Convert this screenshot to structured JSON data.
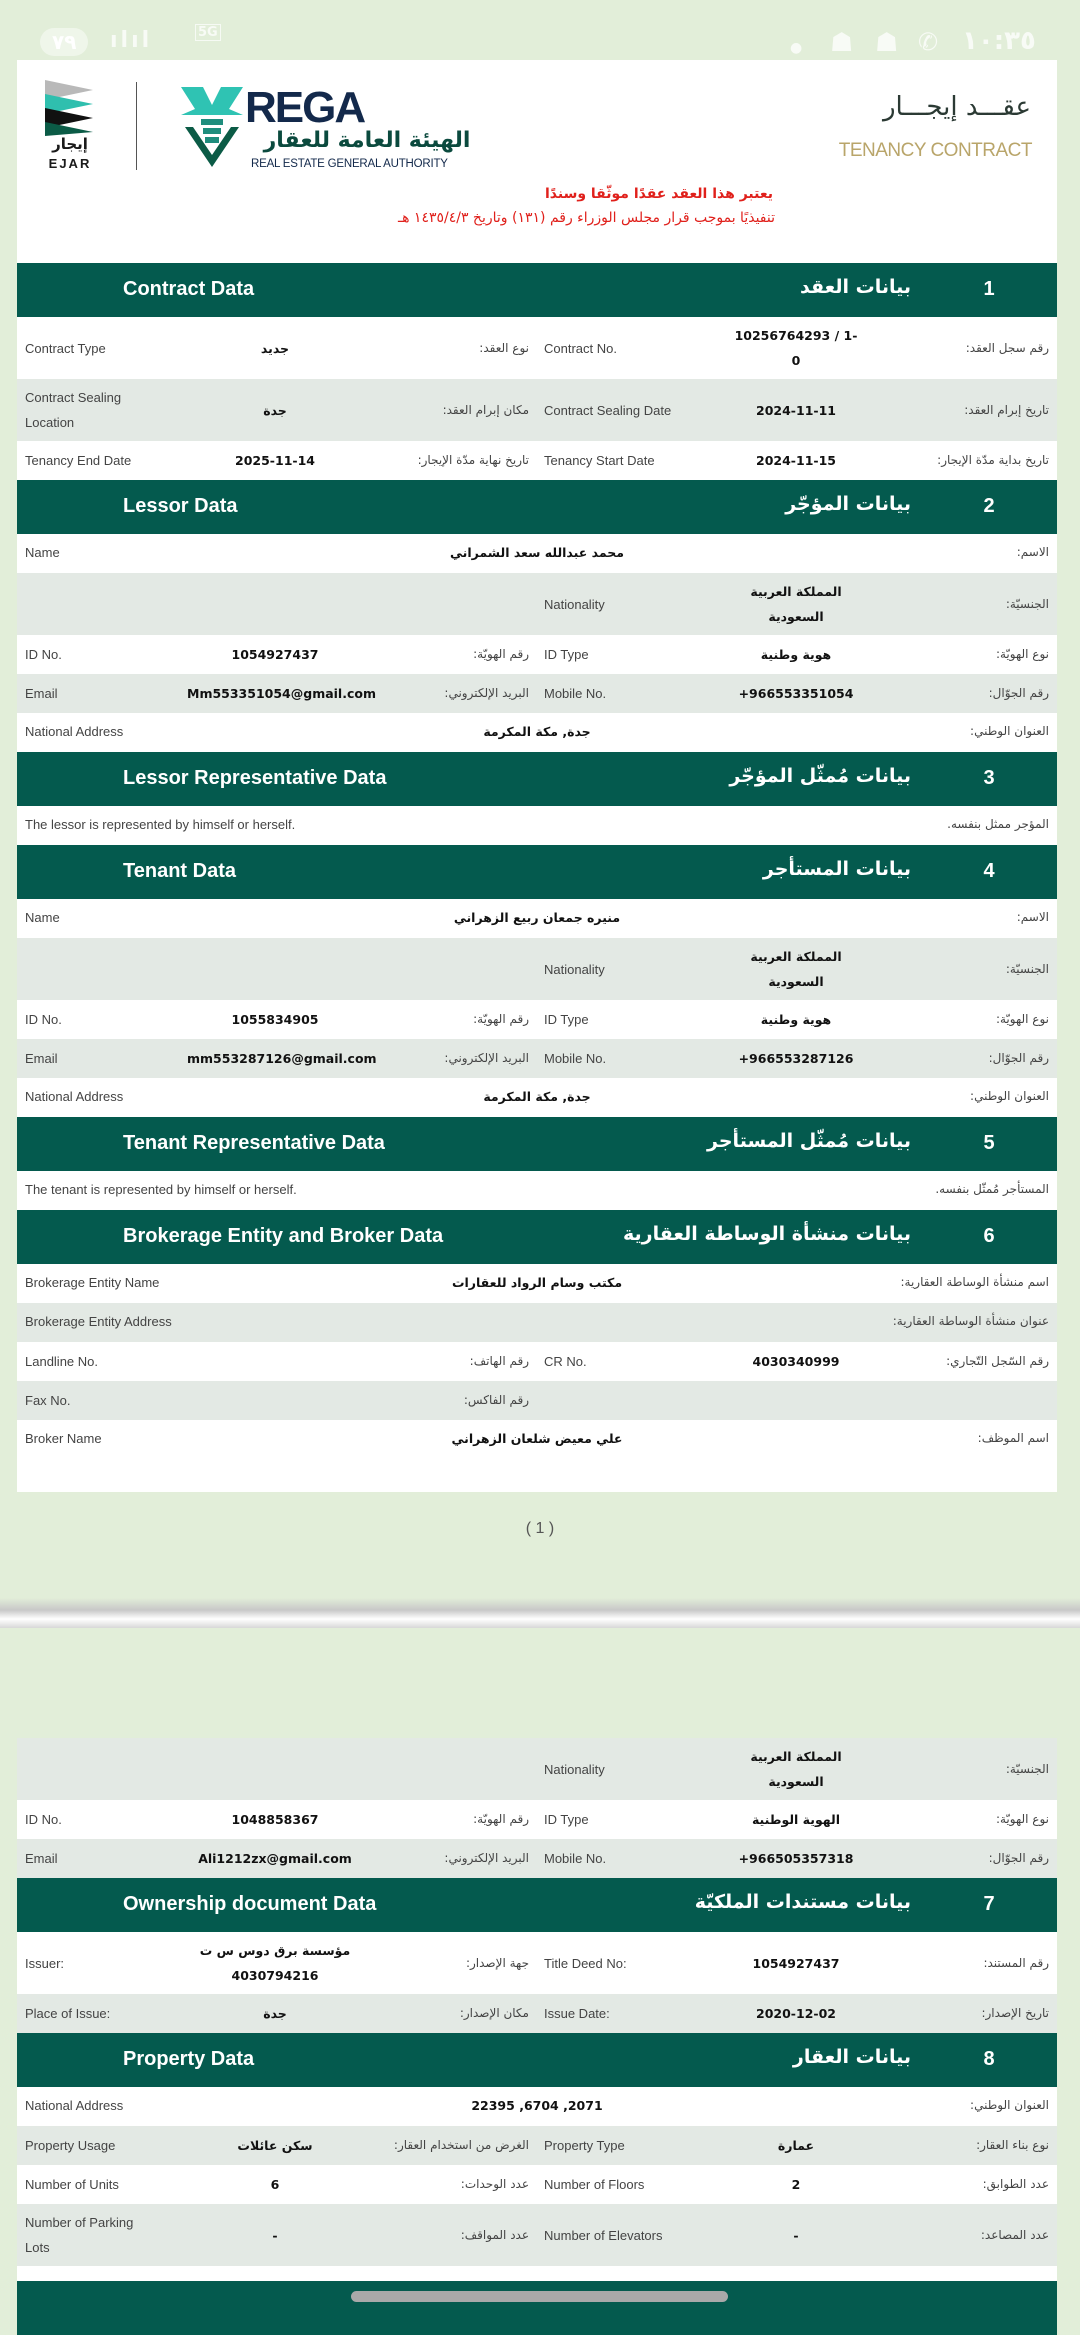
{
  "status_bar": {
    "time": "١٠:٣٥",
    "battery": "٧٩",
    "network": "5G"
  },
  "header": {
    "ejar_logo_ar": "إيجار",
    "ejar_logo_en": "EJAR",
    "rega_logo": "REGA",
    "rega_ar": "الهيئة العامة للعقار",
    "rega_en": "REAL ESTATE GENERAL AUTHORITY",
    "title_ar": "عقـــد إيجـــار",
    "title_en": "TENANCY CONTRACT",
    "notice_line1": "يعتبر هذا العقد عقدًا موثّقا وسندًا",
    "notice_line2": "تنفيذيًا بموجب قرار مجلس الوزراء رقم (١٣١) وتاريخ ١٤٣٥/٤/٣ هـ",
    "colors": {
      "section_header": "#045a4e",
      "notice": "#e0201b",
      "title_en": "#b9a56a"
    }
  },
  "page1": {
    "sections": [
      {
        "num": "1",
        "en": "Contract Data",
        "ar": "بيانات العقد",
        "rows": [
          {
            "type": "quad",
            "cells": [
              "Contract Type",
              "جديد",
              "نوع العقد:",
              "Contract No.",
              "10256764293 / 1-0",
              "رقم سجل العقد:"
            ]
          },
          {
            "type": "quad",
            "cells": [
              "Contract Sealing Location",
              "جدة",
              "مكان إبرام العقد:",
              "Contract Sealing Date",
              "2024-11-11",
              "تاريخ إبرام العقد:"
            ]
          },
          {
            "type": "quad",
            "cells": [
              "Tenancy End Date",
              "2025-11-14",
              "تاريخ نهاية مدّة الإيجار:",
              "Tenancy Start Date",
              "2024-11-15",
              "تاريخ بداية مدّة الإيجار:"
            ]
          }
        ]
      },
      {
        "num": "2",
        "en": "Lessor Data",
        "ar": "بيانات المؤجّر",
        "rows": [
          {
            "type": "full",
            "cells": [
              "Name",
              "محمد عبدالله سعد الشمراني",
              "الاسم:"
            ]
          },
          {
            "type": "quad",
            "cells": [
              "",
              "",
              "",
              "Nationality",
              "المملكة العربية السعودية",
              "الجنسيّة:"
            ]
          },
          {
            "type": "quad",
            "cells": [
              "ID No.",
              "1054927437",
              "رقم الهويّة:",
              "ID Type",
              "هوية وطنية",
              "نوع الهويّة:"
            ]
          },
          {
            "type": "quad",
            "cells": [
              "Email",
              "Mm553351054@gmail.com",
              "البريد الإلكتروني:",
              "Mobile No.",
              "+966553351054",
              "رقم الجوّال:"
            ]
          },
          {
            "type": "full",
            "cells": [
              "National Address",
              "جدة, مكة المكرمة",
              "العنوان الوطني:"
            ]
          }
        ]
      },
      {
        "num": "3",
        "en": "Lessor Representative Data",
        "ar": "بيانات مُمثّل المؤجّر",
        "rows": [
          {
            "type": "note",
            "cells": [
              "The lessor is represented by himself or herself.",
              "المؤجر ممثل بنفسه."
            ]
          }
        ]
      },
      {
        "num": "4",
        "en": "Tenant Data",
        "ar": "بيانات المستأجر",
        "rows": [
          {
            "type": "full",
            "cells": [
              "Name",
              "منيره جمعان ربيع الزهراني",
              "الاسم:"
            ]
          },
          {
            "type": "quad",
            "cells": [
              "",
              "",
              "",
              "Nationality",
              "المملكة العربية السعودية",
              "الجنسيّة:"
            ]
          },
          {
            "type": "quad",
            "cells": [
              "ID No.",
              "1055834905",
              "رقم الهويّة:",
              "ID Type",
              "هوية وطنية",
              "نوع الهويّة:"
            ]
          },
          {
            "type": "quad",
            "cells": [
              "Email",
              "mm553287126@gmail.com",
              "البريد الإلكتروني:",
              "Mobile No.",
              "+966553287126",
              "رقم الجوّال:"
            ]
          },
          {
            "type": "full",
            "cells": [
              "National Address",
              "جدة, مكة المكرمة",
              "العنوان الوطني:"
            ]
          }
        ]
      },
      {
        "num": "5",
        "en": "Tenant Representative Data",
        "ar": "بيانات مُمثّل المستأجر",
        "rows": [
          {
            "type": "note",
            "cells": [
              "The tenant is represented by himself or herself.",
              "المستأجر مُمثّل بنفسه."
            ]
          }
        ]
      },
      {
        "num": "6",
        "en": "Brokerage Entity and Broker Data",
        "ar": "بيانات منشأة الوساطة العقارية",
        "rows": [
          {
            "type": "full",
            "cells": [
              "Brokerage Entity Name",
              "مكتب وسام الرواد للعقارات",
              "اسم منشأة الوساطة العقارية:"
            ]
          },
          {
            "type": "full",
            "cells": [
              "Brokerage Entity Address",
              "",
              "عنوان منشأة الوساطة العقارية:"
            ]
          },
          {
            "type": "quad",
            "cells": [
              "Landline No.",
              "",
              "رقم الهاتف:",
              "CR No.",
              "4030340999",
              "رقم السّجل التّجاري:"
            ]
          },
          {
            "type": "quad",
            "cells": [
              "Fax No.",
              "",
              "رقم الفاكس:",
              "",
              "",
              ""
            ]
          },
          {
            "type": "full",
            "cells": [
              "Broker Name",
              "علي معيض شلعان الزهراني",
              "اسم الموظف:"
            ]
          }
        ]
      }
    ],
    "page_number": "( 1 )"
  },
  "page2": {
    "lead_rows": [
      {
        "type": "quad",
        "cells": [
          "",
          "",
          "",
          "Nationality",
          "المملكة العربية السعودية",
          "الجنسيّة:"
        ]
      },
      {
        "type": "quad",
        "cells": [
          "ID No.",
          "1048858367",
          "رقم الهويّة:",
          "ID Type",
          "الهوية الوطنية",
          "نوع الهويّة:"
        ]
      },
      {
        "type": "quad",
        "cells": [
          "Email",
          "Ali1212zx@gmail.com",
          "البريد الإلكتروني:",
          "Mobile No.",
          "+966505357318",
          "رقم الجوّال:"
        ]
      }
    ],
    "sections": [
      {
        "num": "7",
        "en": "Ownership document Data",
        "ar": "بيانات مستندات الملكيّة",
        "rows": [
          {
            "type": "quad",
            "cells": [
              "Issuer:",
              "مؤسسة برق دوس س ت 4030794216",
              "جهة الإصدار:",
              "Title Deed No:",
              "1054927437",
              "رقم المستند:"
            ]
          },
          {
            "type": "quad",
            "cells": [
              "Place of Issue:",
              "جدة",
              "مكان الإصدار:",
              "Issue Date:",
              "2020-12-02",
              "تاريخ الإصدار:"
            ]
          }
        ]
      },
      {
        "num": "8",
        "en": "Property Data",
        "ar": "بيانات العقار",
        "rows": [
          {
            "type": "full",
            "cells": [
              "National Address",
              "2071, 6704, 22395",
              "العنوان الوطني:"
            ]
          },
          {
            "type": "quad",
            "cells": [
              "Property Usage",
              "سكن عائلات",
              "الغرض من استخدام العقار:",
              "Property Type",
              "عمارة",
              "نوع بناء العقار:"
            ]
          },
          {
            "type": "quad",
            "cells": [
              "Number of Units",
              "6",
              "عدد الوحدات:",
              "Number of Floors",
              "2",
              "عدد الطوابق:"
            ]
          },
          {
            "type": "quad",
            "cells": [
              "Number of Parking Lots",
              "-",
              "عدد المواقف:",
              "Number of Elevators",
              "-",
              "عدد المصاعد:"
            ]
          }
        ]
      }
    ]
  }
}
